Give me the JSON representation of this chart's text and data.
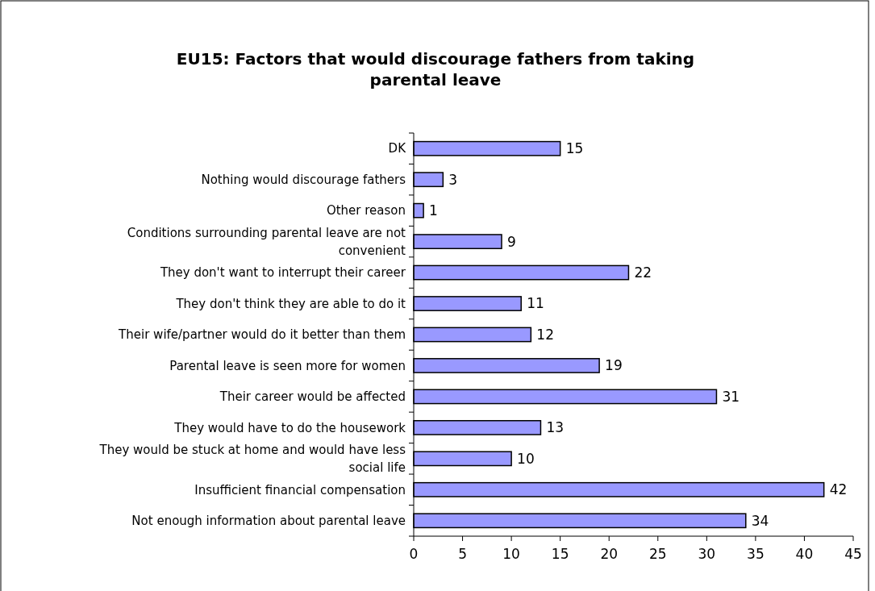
{
  "chart_data": {
    "type": "bar",
    "orientation": "horizontal",
    "title": "EU15: Factors that would discourage fathers from taking parental leave",
    "categories": [
      "DK",
      "Nothing would discourage fathers",
      "Other reason",
      "Conditions surrounding parental leave are not convenient",
      "They don't want to interrupt their career",
      "They don't think they are able to do it",
      "Their wife/partner would do it better than them",
      "Parental leave is seen more for women",
      "Their career would be affected",
      "They would have to do the housework",
      "They would be stuck at home and would have less social life",
      "Insufficient financial compensation",
      "Not enough information about parental leave"
    ],
    "values": [
      15,
      3,
      1,
      9,
      22,
      11,
      12,
      19,
      31,
      13,
      10,
      42,
      34
    ],
    "color": "#9999ff",
    "xlim": [
      0,
      45
    ],
    "xticks": [
      0,
      5,
      10,
      15,
      20,
      25,
      30,
      35,
      40,
      45
    ],
    "data_labels": true,
    "grid": false
  }
}
